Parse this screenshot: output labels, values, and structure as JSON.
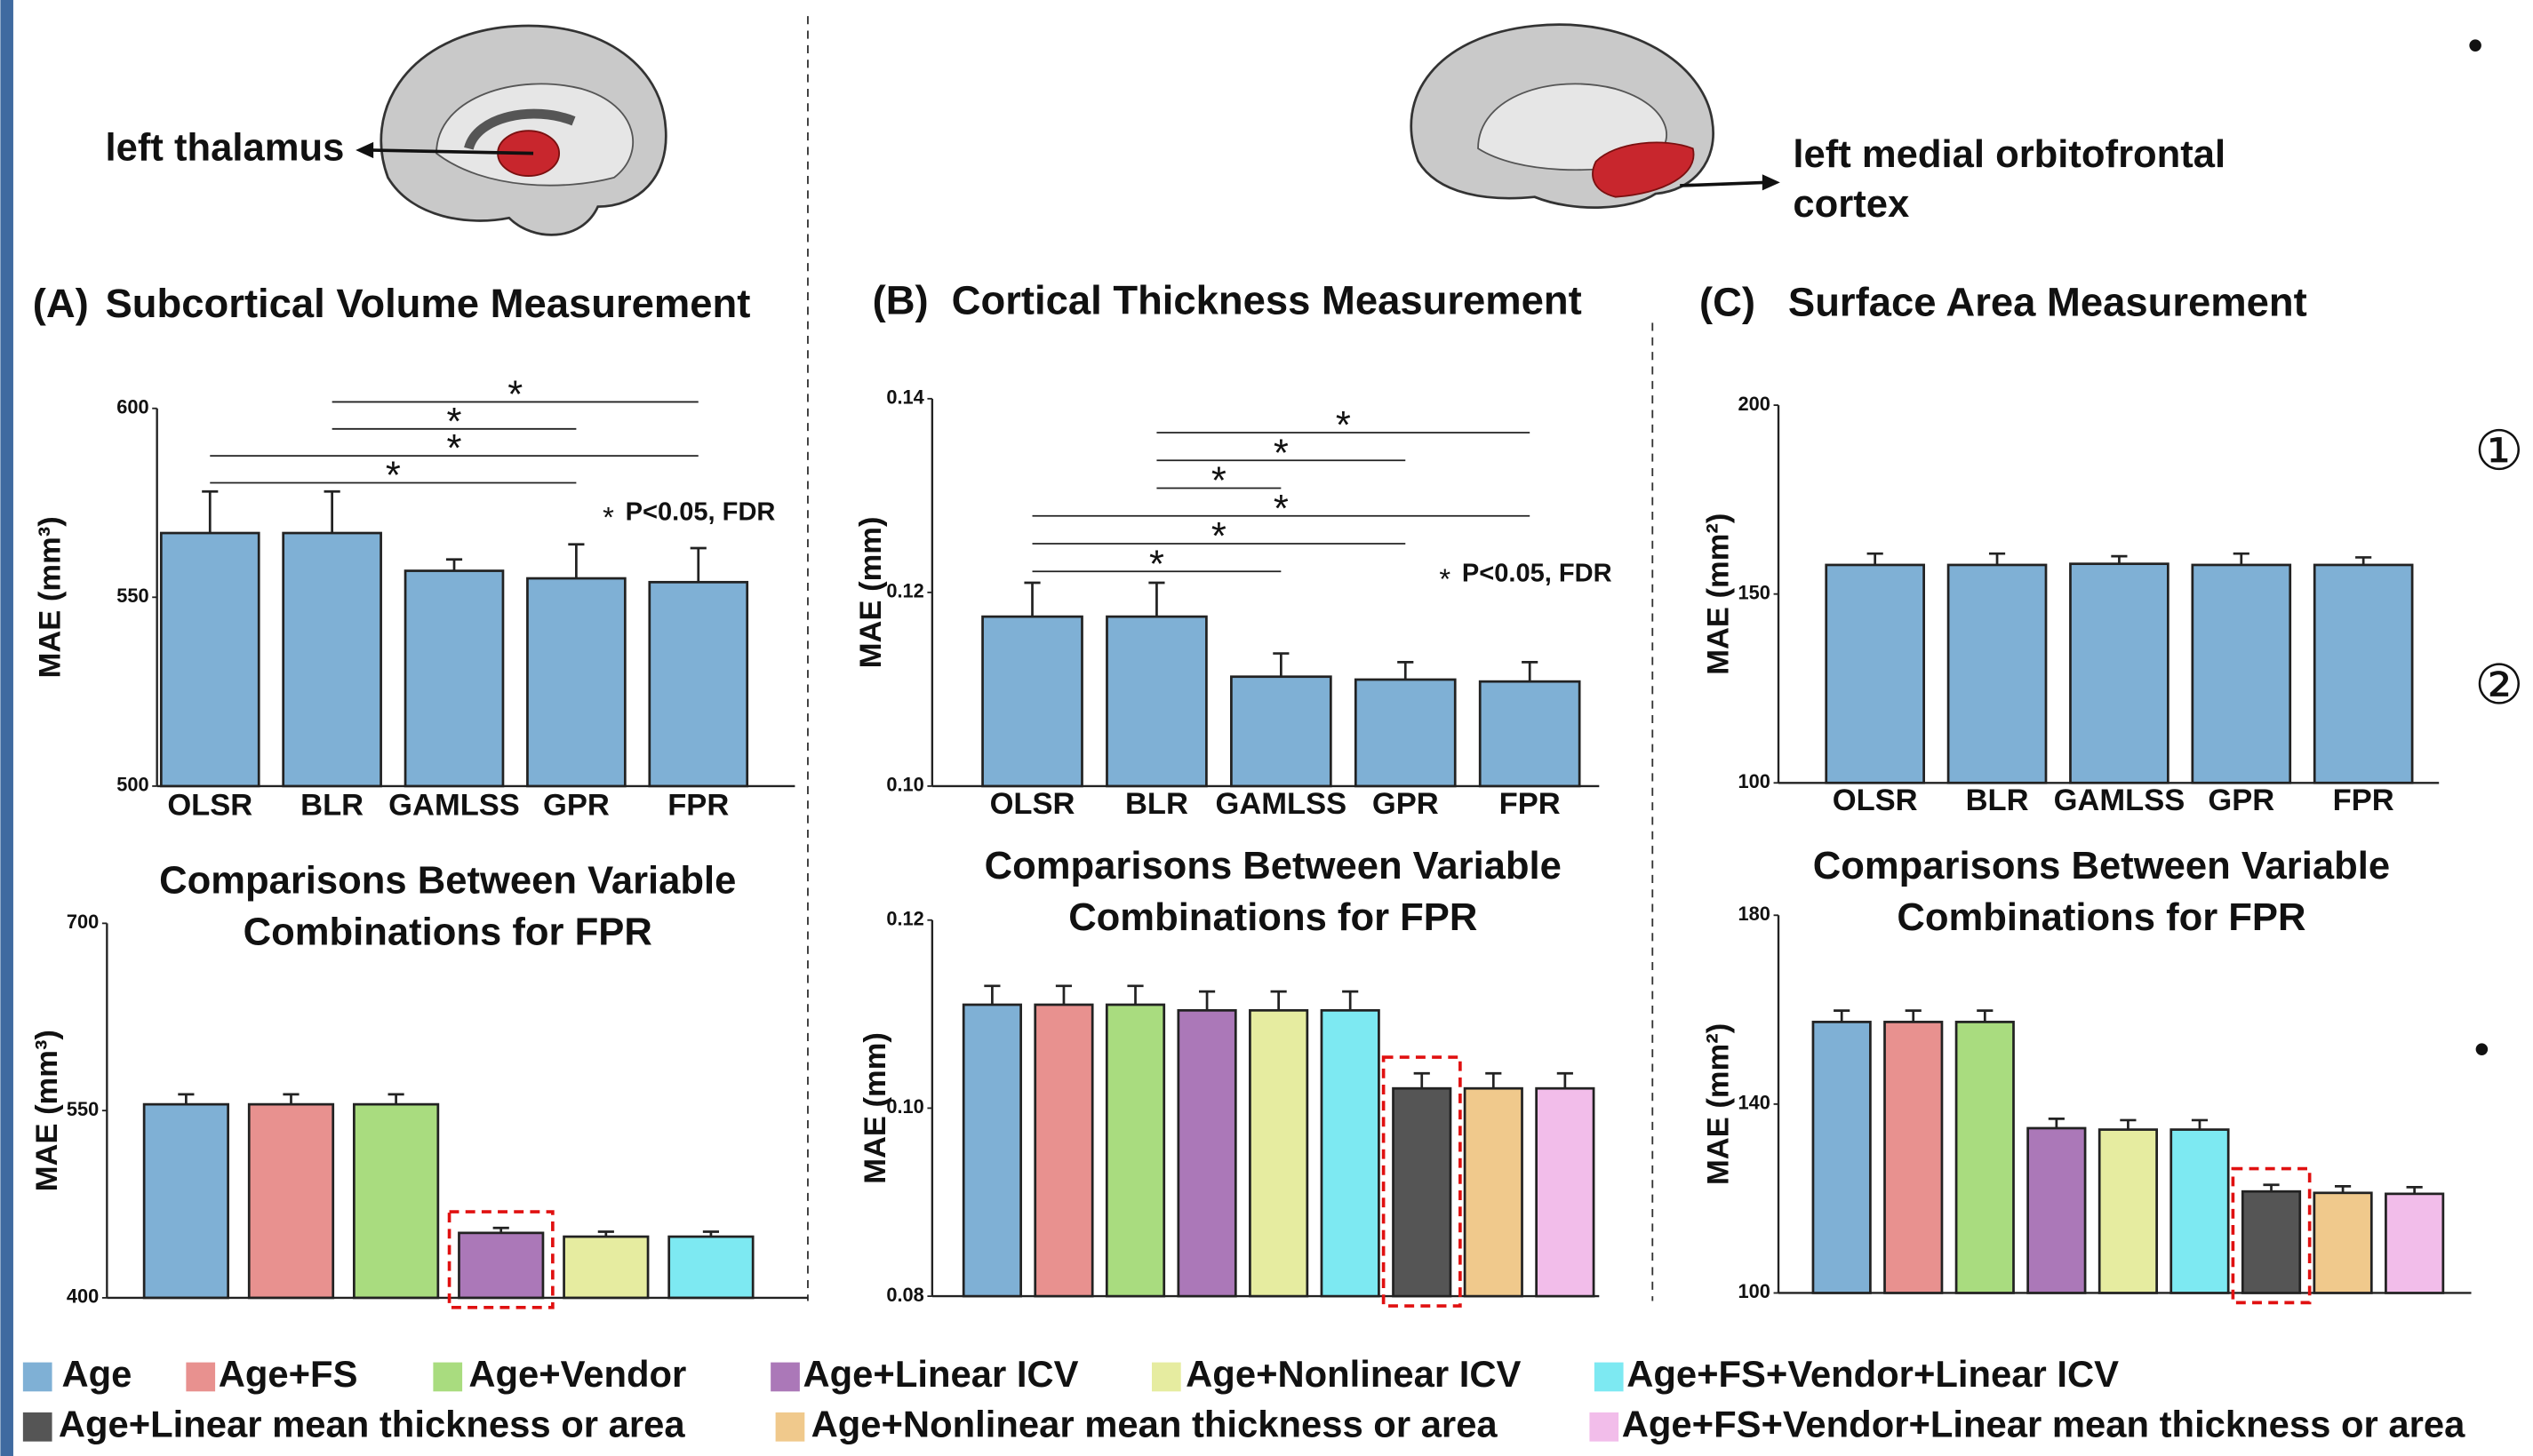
{
  "chart_data": [
    {
      "type": "bar",
      "panel": "(A)",
      "title": "Subcortical Volume Measurement",
      "ylabel": "MAE (mm³)",
      "categories": [
        "OLSR",
        "BLR",
        "GAMLSS",
        "GPR",
        "FPR"
      ],
      "values": [
        567,
        567,
        557,
        555,
        554
      ],
      "errors": [
        11,
        11,
        3,
        9,
        9
      ],
      "color": "#7fb0d5",
      "ylim": [
        500,
        600
      ],
      "yticks": [
        500,
        550,
        600
      ],
      "significance": [
        [
          1,
          4
        ],
        [
          1,
          3
        ],
        [
          0,
          4
        ],
        [
          0,
          3
        ]
      ],
      "significance_marker": "*",
      "note": "P<0.05, FDR"
    },
    {
      "type": "bar",
      "title": [
        "Comparisons Between Variable",
        "Combinations for FPR"
      ],
      "ylabel": "MAE (mm³)",
      "values": [
        555,
        555,
        555,
        452,
        449,
        449
      ],
      "errors": [
        8,
        8,
        8,
        4,
        4,
        4
      ],
      "colors": [
        "#7fb0d5",
        "#e8918f",
        "#a9dc7f",
        "#ab78b8",
        "#e6eca0",
        "#7de9f2"
      ],
      "ylim": [
        400,
        700
      ],
      "yticks": [
        400,
        550,
        700
      ],
      "highlight": 3
    },
    {
      "type": "bar",
      "panel": "(B)",
      "title": "Cortical Thickness Measurement",
      "ylabel": "MAE (mm)",
      "categories": [
        "OLSR",
        "BLR",
        "GAMLSS",
        "GPR",
        "FPR"
      ],
      "values": [
        0.1175,
        0.1175,
        0.1113,
        0.111,
        0.1108
      ],
      "errors": [
        0.0035,
        0.0035,
        0.0024,
        0.0018,
        0.002
      ],
      "color": "#7fb0d5",
      "ylim": [
        0.1,
        0.14
      ],
      "yticks": [
        {
          "value": 0.1,
          "label": "0.10"
        },
        0.12,
        0.14
      ],
      "significance": [
        [
          1,
          4
        ],
        [
          1,
          3
        ],
        [
          1,
          2
        ],
        [
          0,
          4
        ],
        [
          0,
          3
        ],
        [
          0,
          2
        ]
      ],
      "significance_marker": "*",
      "note": "P<0.05, FDR"
    },
    {
      "type": "bar",
      "title": [
        "Comparisons Between Variable",
        "Combinations for FPR"
      ],
      "ylabel": "MAE (mm)",
      "values": [
        0.111,
        0.111,
        0.111,
        0.1104,
        0.1104,
        0.1104,
        0.1021,
        0.1021,
        0.1021
      ],
      "errors": [
        0.002,
        0.002,
        0.002,
        0.002,
        0.002,
        0.002,
        0.0016,
        0.0016,
        0.0016
      ],
      "colors": [
        "#7fb0d5",
        "#e8918f",
        "#a9dc7f",
        "#ab78b8",
        "#e6eca0",
        "#7de9f2",
        "#555555",
        "#f0c98c",
        "#f2bdea"
      ],
      "ylim": [
        0.08,
        0.12
      ],
      "yticks": [
        0.08,
        {
          "value": 0.1,
          "label": "0.10"
        },
        0.12
      ],
      "highlight": 6
    },
    {
      "type": "bar",
      "panel": "(C)",
      "title": "Surface Area Measurement",
      "ylabel": "MAE (mm²)",
      "categories": [
        "OLSR",
        "BLR",
        "GAMLSS",
        "GPR",
        "FPR"
      ],
      "values": [
        157.7,
        157.7,
        158,
        157.7,
        157.7
      ],
      "errors": [
        3,
        3,
        2,
        3,
        2
      ],
      "color": "#7fb0d5",
      "ylim": [
        100,
        200
      ],
      "yticks": [
        100,
        150,
        200
      ]
    },
    {
      "type": "bar",
      "title": [
        "Comparisons Between Variable",
        "Combinations for FPR"
      ],
      "ylabel": "MAE (mm²)",
      "values": [
        157.4,
        157.4,
        157.4,
        134.9,
        134.6,
        134.6,
        121.5,
        121.2,
        121
      ],
      "errors": [
        2.4,
        2.4,
        2.4,
        2,
        2,
        2,
        1.4,
        1.4,
        1.4
      ],
      "colors": [
        "#7fb0d5",
        "#e8918f",
        "#a9dc7f",
        "#ab78b8",
        "#e6eca0",
        "#7de9f2",
        "#555555",
        "#f0c98c",
        "#f2bdea"
      ],
      "ylim": [
        100,
        180
      ],
      "yticks": [
        100,
        140,
        180
      ],
      "highlight": 6
    }
  ],
  "brain_labels": {
    "left": "left thalamus",
    "right": [
      "left medial orbitofrontal",
      "cortex"
    ]
  },
  "legend": [
    {
      "name": "Age",
      "color": "#7fb0d5"
    },
    {
      "name": "Age+FS",
      "color": "#e8918f"
    },
    {
      "name": "Age+Vendor",
      "color": "#a9dc7f"
    },
    {
      "name": "Age+Linear ICV",
      "color": "#ab78b8"
    },
    {
      "name": "Age+Nonlinear ICV",
      "color": "#e6eca0"
    },
    {
      "name": "Age+FS+Vendor+Linear ICV",
      "color": "#7de9f2"
    },
    {
      "name": "Age+Linear mean thickness or area",
      "color": "#555555"
    },
    {
      "name": "Age+Nonlinear mean thickness or area",
      "color": "#f0c98c"
    },
    {
      "name": "Age+FS+Vendor+Linear mean thickness or area",
      "color": "#f2bdea"
    }
  ],
  "margin_marks": [
    "•",
    "①",
    "②",
    "•"
  ]
}
